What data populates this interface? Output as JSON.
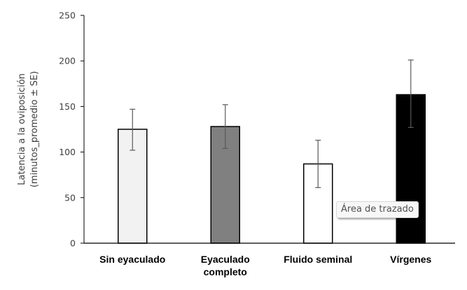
{
  "chart_data": {
    "type": "bar",
    "title": "",
    "xlabel": "",
    "ylabel_lines": [
      "Latencia a la oviposición",
      "(minutos_promedio ± SE)"
    ],
    "ylim": [
      0,
      250
    ],
    "yticks": [
      0,
      50,
      100,
      150,
      200,
      250
    ],
    "ytick_labels": [
      "0",
      "50",
      "100",
      "150",
      "200",
      "250"
    ],
    "grid": false,
    "categories": [
      {
        "lines": [
          "Sin eyaculado"
        ]
      },
      {
        "lines": [
          "Eyaculado",
          "completo"
        ]
      },
      {
        "lines": [
          "Fluido seminal"
        ]
      },
      {
        "lines": [
          "Vírgenes"
        ]
      }
    ],
    "values": [
      125,
      128,
      87,
      163
    ],
    "error_low": [
      102,
      104,
      61,
      127
    ],
    "error_high": [
      147,
      152,
      113,
      201
    ],
    "colors": [
      "#f2f2f2",
      "#808080",
      "#ffffff",
      "#000000"
    ]
  },
  "tooltip": {
    "text": "Área de trazado"
  }
}
